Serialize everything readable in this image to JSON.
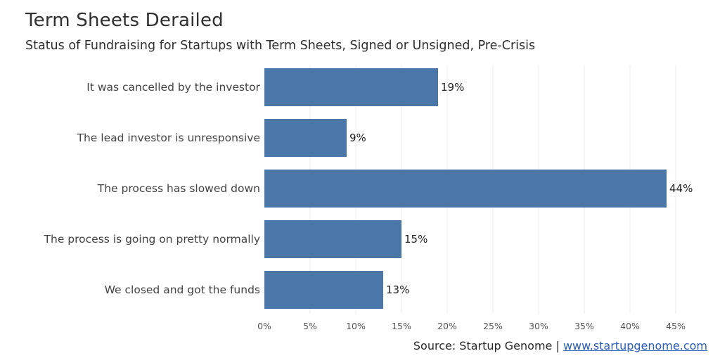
{
  "chart_data": {
    "type": "bar",
    "orientation": "horizontal",
    "title": "Term Sheets Derailed",
    "subtitle": "Status of Fundraising for Startups with Term Sheets, Signed or Unsigned, Pre-Crisis",
    "categories": [
      "It was cancelled by the investor",
      "The lead investor is unresponsive",
      "The process has slowed down",
      "The process is going on pretty normally",
      "We closed and got the funds"
    ],
    "values": [
      19,
      9,
      44,
      15,
      13
    ],
    "value_labels": [
      "19%",
      "9%",
      "44%",
      "15%",
      "13%"
    ],
    "xlim": [
      0,
      48
    ],
    "x_ticks": [
      0,
      5,
      10,
      15,
      20,
      25,
      30,
      35,
      40,
      45
    ],
    "x_tick_labels": [
      "0%",
      "5%",
      "10%",
      "15%",
      "20%",
      "25%",
      "30%",
      "35%",
      "40%",
      "45%"
    ],
    "xlabel": "",
    "ylabel": "",
    "grid": true,
    "bar_color": "#4a76a8",
    "grid_color": "#ececec"
  },
  "source": {
    "text": "Source: Startup Genome | ",
    "link_text": "www.startupgenome.com"
  }
}
